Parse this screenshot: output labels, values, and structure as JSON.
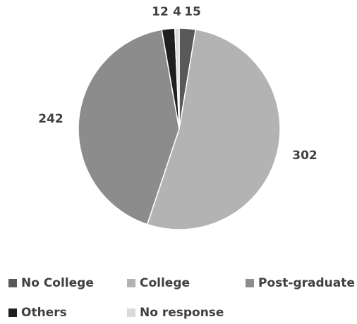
{
  "chart_data": {
    "type": "pie",
    "categories": [
      "No College",
      "College",
      "Post-graduate",
      "Others",
      "No response"
    ],
    "values": [
      15,
      302,
      242,
      12,
      4
    ],
    "data_labels": [
      "15",
      "302",
      "242",
      "12",
      "4"
    ],
    "colors": [
      "#595959",
      "#b3b3b3",
      "#8c8c8c",
      "#1f1f1f",
      "#d9d9d9"
    ],
    "start_angle_deg": 0,
    "direction": "clockwise",
    "legend_position": "bottom"
  },
  "legend": {
    "items": [
      {
        "label": "No College",
        "color": "#595959"
      },
      {
        "label": "College",
        "color": "#b3b3b3"
      },
      {
        "label": "Post-graduate",
        "color": "#8c8c8c"
      },
      {
        "label": "Others",
        "color": "#1f1f1f"
      },
      {
        "label": "No response",
        "color": "#d9d9d9"
      }
    ]
  }
}
